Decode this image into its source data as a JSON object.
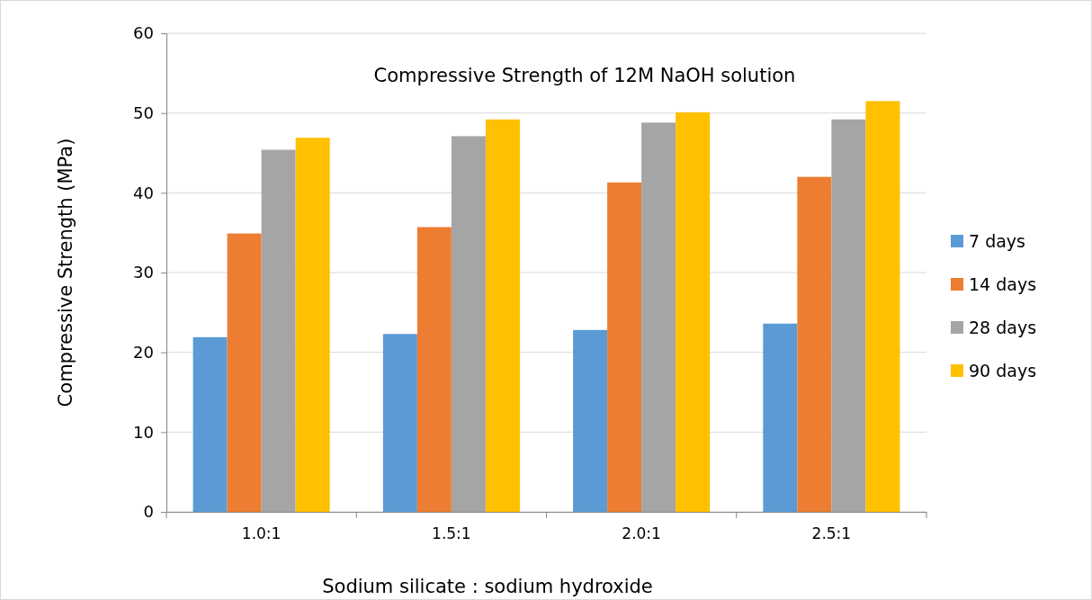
{
  "chart_data": {
    "type": "bar",
    "title": "Compressive Strength of 12M NaOH solution",
    "xlabel": "Sodium silicate : sodium hydroxide",
    "ylabel": "Compressive  Strength (MPa)",
    "categories": [
      "1.0:1",
      "1.5:1",
      "2.0:1",
      "2.5:1"
    ],
    "series": [
      {
        "name": "7 days",
        "color": "#5b9bd5",
        "values": [
          21.9,
          22.3,
          22.8,
          23.6
        ]
      },
      {
        "name": "14 days",
        "color": "#ed7d31",
        "values": [
          34.9,
          35.7,
          41.3,
          42.0
        ]
      },
      {
        "name": "28 days",
        "color": "#a5a5a5",
        "values": [
          45.4,
          47.1,
          48.8,
          49.2
        ]
      },
      {
        "name": "90 days",
        "color": "#ffc000",
        "values": [
          46.9,
          49.2,
          50.1,
          51.5
        ]
      }
    ],
    "ylim": [
      0,
      60
    ],
    "yticks": [
      0,
      10,
      20,
      30,
      40,
      50,
      60
    ],
    "grid": "y",
    "legend": "right"
  }
}
